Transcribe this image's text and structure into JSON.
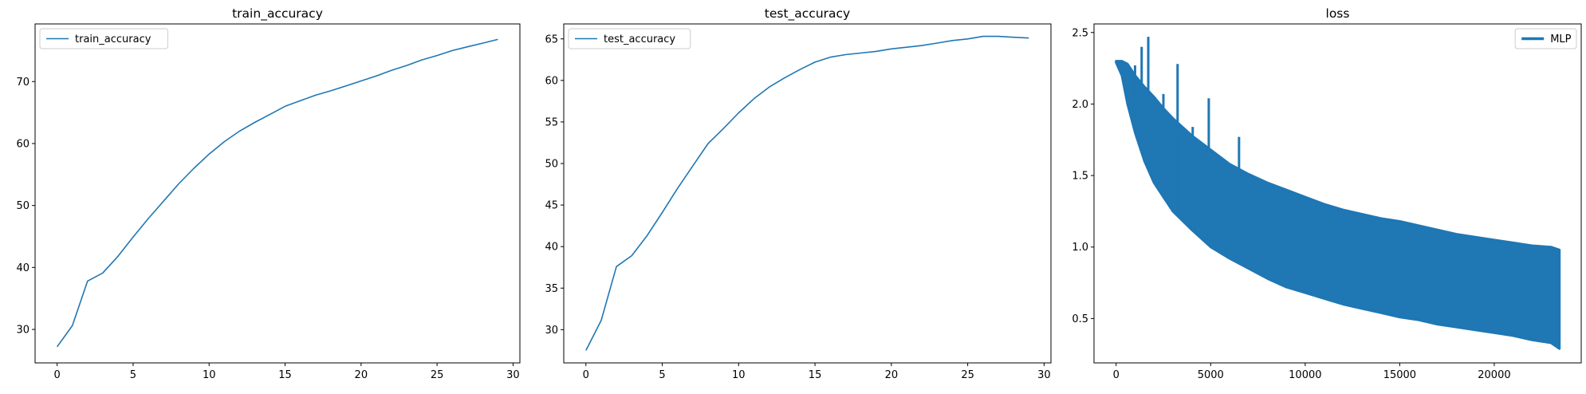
{
  "colors": {
    "series": "#1f77b4",
    "axes": "#000000",
    "background": "#ffffff",
    "legend_border": "#cccccc"
  },
  "chart_data": [
    {
      "id": "train",
      "type": "line",
      "title": "train_accuracy",
      "xlabel": "",
      "ylabel": "",
      "xlim": [
        -1.45,
        30.45
      ],
      "ylim": [
        24.6,
        79.3
      ],
      "xticks": [
        0,
        5,
        10,
        15,
        20,
        25,
        30
      ],
      "yticks": [
        30,
        40,
        50,
        60,
        70
      ],
      "grid": false,
      "legend": "top-left",
      "series": [
        {
          "name": "train_accuracy",
          "x": [
            0,
            1,
            2,
            3,
            4,
            5,
            6,
            7,
            8,
            9,
            10,
            11,
            12,
            13,
            14,
            15,
            16,
            17,
            18,
            19,
            20,
            21,
            22,
            23,
            24,
            25,
            26,
            27,
            28,
            29
          ],
          "y": [
            27.2,
            30.6,
            37.8,
            39.1,
            41.8,
            44.9,
            47.9,
            50.7,
            53.5,
            56.0,
            58.3,
            60.3,
            62.0,
            63.4,
            64.7,
            66.0,
            66.9,
            67.8,
            68.5,
            69.3,
            70.1,
            70.9,
            71.8,
            72.6,
            73.5,
            74.2,
            75.0,
            75.6,
            76.2,
            76.8
          ]
        }
      ]
    },
    {
      "id": "test",
      "type": "line",
      "title": "test_accuracy",
      "xlabel": "",
      "ylabel": "",
      "xlim": [
        -1.45,
        30.45
      ],
      "ylim": [
        26.0,
        66.8
      ],
      "xticks": [
        0,
        5,
        10,
        15,
        20,
        25,
        30
      ],
      "yticks": [
        30,
        35,
        40,
        45,
        50,
        55,
        60,
        65
      ],
      "grid": false,
      "legend": "top-left",
      "series": [
        {
          "name": "test_accuracy",
          "x": [
            0,
            1,
            2,
            3,
            4,
            5,
            6,
            7,
            8,
            9,
            10,
            11,
            12,
            13,
            14,
            15,
            16,
            17,
            18,
            19,
            20,
            21,
            22,
            23,
            24,
            25,
            26,
            27,
            28,
            29
          ],
          "y": [
            27.5,
            31.1,
            37.6,
            38.9,
            41.3,
            44.1,
            47.0,
            49.7,
            52.4,
            54.2,
            56.1,
            57.8,
            59.2,
            60.3,
            61.3,
            62.2,
            62.8,
            63.1,
            63.3,
            63.5,
            63.8,
            64.0,
            64.2,
            64.5,
            64.8,
            65.0,
            65.3,
            65.3,
            65.2,
            65.1
          ]
        }
      ]
    },
    {
      "id": "loss",
      "type": "line",
      "title": "loss",
      "xlabel": "",
      "ylabel": "",
      "xlim": [
        -1170,
        24600
      ],
      "ylim": [
        0.19,
        2.56
      ],
      "xticks": [
        0,
        5000,
        10000,
        15000,
        20000
      ],
      "yticks": [
        0.5,
        1.0,
        1.5,
        2.0,
        2.5
      ],
      "ytick_labels": [
        "0.5",
        "1.0",
        "1.5",
        "2.0",
        "2.5"
      ],
      "grid": false,
      "legend": "top-right",
      "series": [
        {
          "name": "MLP",
          "x_max": 23450,
          "upper_envelope": {
            "x": [
              0,
              300,
              600,
              1000,
              1500,
              2000,
              2500,
              3000,
              4000,
              5000,
              6000,
              7000,
              8000,
              9000,
              10000,
              11000,
              12000,
              13000,
              14000,
              15000,
              16000,
              17000,
              18000,
              19000,
              20000,
              21000,
              22000,
              23000,
              23450
            ],
            "y": [
              2.3,
              2.3,
              2.28,
              2.2,
              2.12,
              2.05,
              1.97,
              1.9,
              1.78,
              1.68,
              1.58,
              1.51,
              1.45,
              1.4,
              1.35,
              1.3,
              1.26,
              1.23,
              1.2,
              1.18,
              1.15,
              1.12,
              1.09,
              1.07,
              1.05,
              1.03,
              1.01,
              1.0,
              0.98
            ]
          },
          "lower_envelope": {
            "x": [
              0,
              300,
              600,
              1000,
              1500,
              2000,
              2500,
              3000,
              4000,
              5000,
              6000,
              7000,
              8000,
              9000,
              10000,
              11000,
              12000,
              13000,
              14000,
              15000,
              16000,
              17000,
              18000,
              19000,
              20000,
              21000,
              22000,
              23000,
              23450
            ],
            "y": [
              2.29,
              2.2,
              2.0,
              1.8,
              1.6,
              1.45,
              1.35,
              1.25,
              1.12,
              1.0,
              0.92,
              0.85,
              0.78,
              0.72,
              0.68,
              0.64,
              0.6,
              0.57,
              0.54,
              0.51,
              0.49,
              0.46,
              0.44,
              0.42,
              0.4,
              0.38,
              0.35,
              0.33,
              0.29
            ]
          },
          "spikes": [
            {
              "x": 1000,
              "y": 2.27
            },
            {
              "x": 1350,
              "y": 2.4
            },
            {
              "x": 1700,
              "y": 2.47
            },
            {
              "x": 2500,
              "y": 2.07
            },
            {
              "x": 3250,
              "y": 2.28
            },
            {
              "x": 4050,
              "y": 1.84
            },
            {
              "x": 4900,
              "y": 2.04
            },
            {
              "x": 5700,
              "y": 1.6
            },
            {
              "x": 6500,
              "y": 1.77
            }
          ]
        }
      ]
    }
  ]
}
